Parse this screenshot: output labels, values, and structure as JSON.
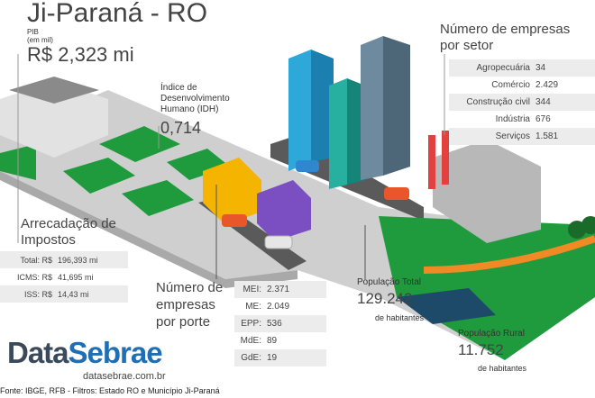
{
  "title": "Ji-Paraná - RO",
  "pib": {
    "label": "PIB",
    "unit": "(em mil)",
    "value": "R$ 2,323 mi"
  },
  "idh": {
    "label": "Índice de Desenvolvimento Humano (IDH)",
    "value": "0,714"
  },
  "setor": {
    "title": "Número de empresas por setor",
    "rows": [
      {
        "label": "Agropecuária",
        "value": "34"
      },
      {
        "label": "Comércio",
        "value": "2.429"
      },
      {
        "label": "Construção civil",
        "value": "344"
      },
      {
        "label": "Indústria",
        "value": "676"
      },
      {
        "label": "Serviços",
        "value": "1.581"
      }
    ]
  },
  "impostos": {
    "title": "Arrecadação de Impostos",
    "rows": [
      {
        "label": "Total: R$",
        "value": "196,393 mi"
      },
      {
        "label": "ICMS: R$",
        "value": "41,695 mi"
      },
      {
        "label": "ISS: R$",
        "value": "14,43 mi"
      }
    ]
  },
  "porte": {
    "title": "Número de empresas por porte",
    "rows": [
      {
        "label": "MEI:",
        "value": "2.371"
      },
      {
        "label": "ME:",
        "value": "2.049"
      },
      {
        "label": "EPP:",
        "value": "536"
      },
      {
        "label": "MdE:",
        "value": "89"
      },
      {
        "label": "GdE:",
        "value": "19"
      }
    ]
  },
  "populacao_total": {
    "label": "População Total",
    "value": "129.242",
    "unit": "de habitantes"
  },
  "populacao_rural": {
    "label": "População Rural",
    "value": "11.752",
    "unit": "de habitantes"
  },
  "logo": {
    "part1": "Data",
    "part2": "Sebrae",
    "url": "datasebrae.com.br"
  },
  "fonte": "Fonte: IBGE, RFB  - Filtros: Estado RO e Município Ji-Paraná",
  "colors": {
    "logo_dark": "#3b4a5a",
    "logo_blue": "#1f6fb5",
    "grass": "#1f9a3c",
    "platform": "#d4d4d4"
  }
}
